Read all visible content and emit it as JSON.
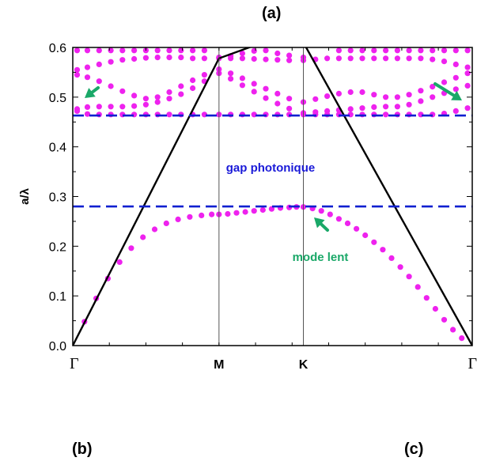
{
  "panel_labels": {
    "a": "(a)",
    "b": "(b)",
    "c": "(c)"
  },
  "colors": {
    "bands": "#ee22ee",
    "gap_lines": "#1020d0",
    "light_line": "#000000",
    "annotation_green": "#1aa868",
    "annotation_blue": "#1a1ad8"
  },
  "icons": [
    "arrow-icon"
  ],
  "chart_data": {
    "type": "scatter",
    "ylabel": "a/λ",
    "xlabel": "",
    "ylim": [
      0.0,
      0.6
    ],
    "yticks": [
      "0.0",
      "0.1",
      "0.2",
      "0.3",
      "0.4",
      "0.5",
      "0.6"
    ],
    "xticks": [
      {
        "label": "Γ",
        "k": 0.0
      },
      {
        "label": "M",
        "k": 1.0
      },
      {
        "label": "K",
        "k": 1.577
      },
      {
        "label": "Γ",
        "k": 2.732
      }
    ],
    "grid": false,
    "gap_lines": [
      0.28,
      0.463
    ],
    "annotations": {
      "gap": "gap photonique",
      "slow_mode": "mode lent"
    },
    "light_line": [
      {
        "k": 0.0,
        "y": 0.0
      },
      {
        "k": 1.0,
        "y": 0.578
      },
      {
        "k": 1.3,
        "y": 0.61
      },
      {
        "k": 1.577,
        "y": 0.61
      },
      {
        "k": 2.732,
        "y": 0.0
      }
    ],
    "series": [
      {
        "points": [
          [
            0.08,
            0.048
          ],
          [
            0.16,
            0.095
          ],
          [
            0.24,
            0.135
          ],
          [
            0.32,
            0.168
          ],
          [
            0.4,
            0.196
          ],
          [
            0.48,
            0.218
          ],
          [
            0.56,
            0.234
          ],
          [
            0.64,
            0.246
          ],
          [
            0.72,
            0.254
          ],
          [
            0.8,
            0.259
          ],
          [
            0.88,
            0.262
          ],
          [
            0.95,
            0.264
          ],
          [
            1.0,
            0.264
          ],
          [
            1.06,
            0.265
          ],
          [
            1.12,
            0.267
          ],
          [
            1.18,
            0.269
          ],
          [
            1.24,
            0.271
          ],
          [
            1.3,
            0.273
          ],
          [
            1.36,
            0.275
          ],
          [
            1.42,
            0.277
          ],
          [
            1.48,
            0.278
          ],
          [
            1.53,
            0.279
          ],
          [
            1.577,
            0.279
          ],
          [
            1.64,
            0.276
          ],
          [
            1.7,
            0.271
          ],
          [
            1.76,
            0.264
          ],
          [
            1.82,
            0.255
          ],
          [
            1.88,
            0.246
          ],
          [
            1.94,
            0.235
          ],
          [
            2.0,
            0.222
          ],
          [
            2.06,
            0.208
          ],
          [
            2.12,
            0.193
          ],
          [
            2.18,
            0.176
          ],
          [
            2.24,
            0.158
          ],
          [
            2.3,
            0.139
          ],
          [
            2.36,
            0.118
          ],
          [
            2.42,
            0.096
          ],
          [
            2.48,
            0.074
          ],
          [
            2.54,
            0.052
          ],
          [
            2.6,
            0.032
          ],
          [
            2.66,
            0.015
          ]
        ]
      },
      {
        "points": [
          [
            0.03,
            0.472
          ],
          [
            0.1,
            0.466
          ],
          [
            0.18,
            0.465
          ],
          [
            0.26,
            0.465
          ],
          [
            0.34,
            0.465
          ],
          [
            0.42,
            0.465
          ],
          [
            0.5,
            0.465
          ],
          [
            0.58,
            0.465
          ],
          [
            0.66,
            0.465
          ],
          [
            0.74,
            0.465
          ],
          [
            0.82,
            0.465
          ],
          [
            0.9,
            0.465
          ],
          [
            1.0,
            0.465
          ],
          [
            1.08,
            0.465
          ],
          [
            1.16,
            0.465
          ],
          [
            1.24,
            0.465
          ],
          [
            1.32,
            0.465
          ],
          [
            1.4,
            0.465
          ],
          [
            1.48,
            0.465
          ],
          [
            1.577,
            0.465
          ],
          [
            1.66,
            0.465
          ],
          [
            1.74,
            0.465
          ],
          [
            1.82,
            0.465
          ],
          [
            1.9,
            0.465
          ],
          [
            1.98,
            0.465
          ],
          [
            2.06,
            0.465
          ],
          [
            2.14,
            0.465
          ],
          [
            2.22,
            0.465
          ],
          [
            2.3,
            0.465
          ],
          [
            2.38,
            0.465
          ],
          [
            2.46,
            0.465
          ],
          [
            2.54,
            0.467
          ],
          [
            2.62,
            0.472
          ],
          [
            2.7,
            0.478
          ]
        ]
      },
      {
        "points": [
          [
            0.03,
            0.476
          ],
          [
            0.1,
            0.48
          ],
          [
            0.18,
            0.481
          ],
          [
            0.26,
            0.481
          ],
          [
            0.34,
            0.481
          ],
          [
            0.42,
            0.482
          ],
          [
            0.5,
            0.485
          ],
          [
            0.58,
            0.49
          ],
          [
            0.66,
            0.497
          ],
          [
            0.74,
            0.506
          ],
          [
            0.82,
            0.518
          ],
          [
            0.9,
            0.532
          ],
          [
            1.0,
            0.548
          ],
          [
            1.08,
            0.537
          ],
          [
            1.16,
            0.524
          ],
          [
            1.24,
            0.511
          ],
          [
            1.32,
            0.498
          ],
          [
            1.4,
            0.487
          ],
          [
            1.48,
            0.477
          ],
          [
            1.577,
            0.468
          ],
          [
            1.66,
            0.47
          ],
          [
            1.74,
            0.472
          ],
          [
            1.82,
            0.474
          ],
          [
            1.9,
            0.476
          ],
          [
            1.98,
            0.478
          ],
          [
            2.06,
            0.48
          ],
          [
            2.14,
            0.481
          ],
          [
            2.22,
            0.481
          ],
          [
            2.3,
            0.485
          ],
          [
            2.38,
            0.492
          ],
          [
            2.46,
            0.5
          ],
          [
            2.54,
            0.508
          ],
          [
            2.62,
            0.516
          ],
          [
            2.7,
            0.523
          ]
        ]
      },
      {
        "points": [
          [
            0.03,
            0.545
          ],
          [
            0.1,
            0.54
          ],
          [
            0.18,
            0.532
          ],
          [
            0.26,
            0.522
          ],
          [
            0.34,
            0.512
          ],
          [
            0.42,
            0.503
          ],
          [
            0.5,
            0.497
          ],
          [
            0.58,
            0.5
          ],
          [
            0.66,
            0.51
          ],
          [
            0.74,
            0.522
          ],
          [
            0.82,
            0.534
          ],
          [
            0.9,
            0.545
          ],
          [
            1.0,
            0.556
          ],
          [
            1.08,
            0.548
          ],
          [
            1.16,
            0.538
          ],
          [
            1.24,
            0.527
          ],
          [
            1.32,
            0.517
          ],
          [
            1.4,
            0.507
          ],
          [
            1.48,
            0.497
          ],
          [
            1.577,
            0.49
          ],
          [
            1.66,
            0.496
          ],
          [
            1.74,
            0.502
          ],
          [
            1.82,
            0.507
          ],
          [
            1.9,
            0.51
          ],
          [
            1.98,
            0.51
          ],
          [
            2.06,
            0.505
          ],
          [
            2.14,
            0.5
          ],
          [
            2.22,
            0.5
          ],
          [
            2.3,
            0.505
          ],
          [
            2.38,
            0.513
          ],
          [
            2.46,
            0.521
          ],
          [
            2.54,
            0.53
          ],
          [
            2.62,
            0.539
          ],
          [
            2.7,
            0.548
          ]
        ]
      },
      {
        "points": [
          [
            0.03,
            0.555
          ],
          [
            0.1,
            0.56
          ],
          [
            0.18,
            0.566
          ],
          [
            0.26,
            0.571
          ],
          [
            0.34,
            0.575
          ],
          [
            0.42,
            0.577
          ],
          [
            0.5,
            0.579
          ],
          [
            0.58,
            0.58
          ],
          [
            0.66,
            0.58
          ],
          [
            0.74,
            0.58
          ],
          [
            0.82,
            0.578
          ],
          [
            0.9,
            0.578
          ],
          [
            1.0,
            0.578
          ],
          [
            1.08,
            0.578
          ],
          [
            1.16,
            0.578
          ],
          [
            1.24,
            0.577
          ],
          [
            1.32,
            0.576
          ],
          [
            1.4,
            0.575
          ],
          [
            1.48,
            0.574
          ],
          [
            1.577,
            0.574
          ],
          [
            1.66,
            0.576
          ],
          [
            1.74,
            0.578
          ],
          [
            1.82,
            0.578
          ],
          [
            1.9,
            0.578
          ],
          [
            1.98,
            0.578
          ],
          [
            2.06,
            0.578
          ],
          [
            2.14,
            0.578
          ],
          [
            2.22,
            0.578
          ],
          [
            2.3,
            0.578
          ],
          [
            2.38,
            0.578
          ],
          [
            2.46,
            0.576
          ],
          [
            2.54,
            0.572
          ],
          [
            2.62,
            0.566
          ],
          [
            2.7,
            0.56
          ]
        ]
      },
      {
        "points": [
          [
            0.03,
            0.594
          ],
          [
            0.1,
            0.594
          ],
          [
            0.18,
            0.594
          ],
          [
            0.26,
            0.594
          ],
          [
            0.34,
            0.594
          ],
          [
            0.42,
            0.594
          ],
          [
            0.5,
            0.594
          ],
          [
            0.58,
            0.594
          ],
          [
            0.66,
            0.594
          ],
          [
            0.74,
            0.594
          ],
          [
            0.82,
            0.594
          ],
          [
            0.9,
            0.594
          ],
          [
            1.0,
            0.58
          ],
          [
            1.08,
            0.583
          ],
          [
            1.16,
            0.588
          ],
          [
            1.24,
            0.593
          ],
          [
            1.32,
            0.594
          ],
          [
            1.4,
            0.588
          ],
          [
            1.48,
            0.584
          ],
          [
            1.577,
            0.58
          ],
          [
            1.82,
            0.594
          ],
          [
            1.9,
            0.594
          ],
          [
            1.98,
            0.594
          ],
          [
            2.06,
            0.594
          ],
          [
            2.14,
            0.594
          ],
          [
            2.22,
            0.594
          ],
          [
            2.3,
            0.594
          ],
          [
            2.38,
            0.594
          ],
          [
            2.46,
            0.594
          ],
          [
            2.54,
            0.594
          ],
          [
            2.62,
            0.594
          ],
          [
            2.7,
            0.594
          ]
        ]
      }
    ]
  }
}
